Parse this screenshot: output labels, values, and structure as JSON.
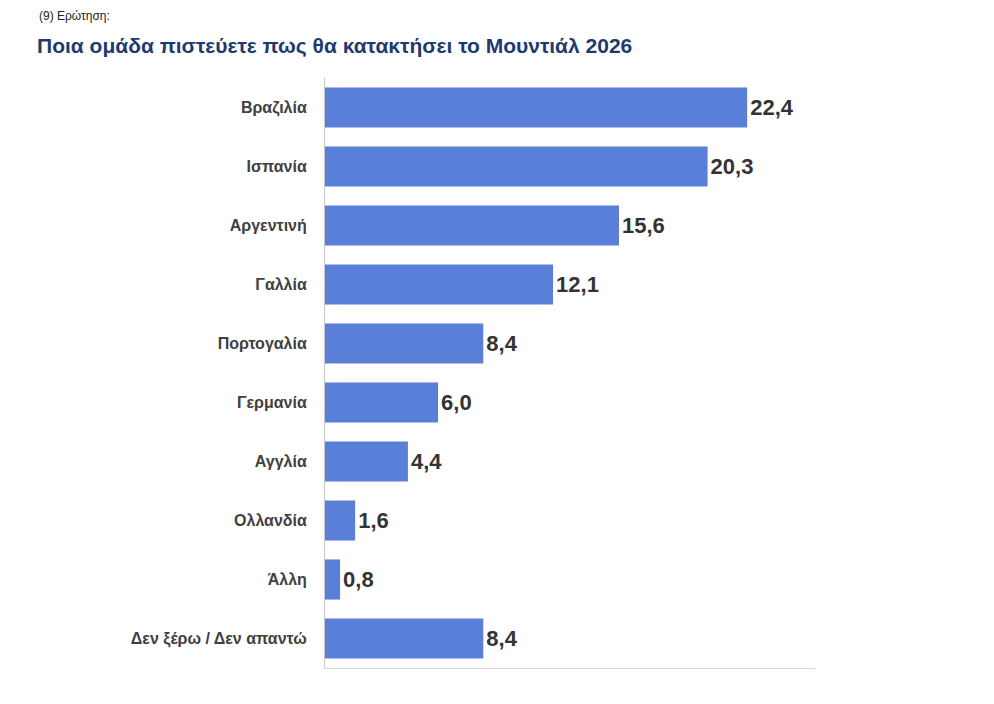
{
  "chart_data": {
    "type": "bar",
    "orientation": "horizontal",
    "subtitle": "(9) Ερώτηση:",
    "title": "Ποια ομάδα πιστεύετε πως θα κατακτήσει το Μουντιάλ 2026",
    "categories": [
      "Βραζιλία",
      "Ισπανία",
      "Αργεντινή",
      "Γαλλία",
      "Πορτογαλία",
      "Γερμανία",
      "Αγγλία",
      "Ολλανδία",
      "Άλλη",
      "Δεν ξέρω / Δεν απαντώ"
    ],
    "values": [
      22.4,
      20.3,
      15.6,
      12.1,
      8.4,
      6.0,
      4.4,
      1.6,
      0.8,
      8.4
    ],
    "value_labels": [
      "22,4",
      "20,3",
      "15,6",
      "12,1",
      "8,4",
      "6,0",
      "4,4",
      "1,6",
      "0,8",
      "8,4"
    ],
    "color": "#5a7fd8",
    "xlim": [
      0,
      26
    ],
    "data_labels": true,
    "tick_labels": "y",
    "grid": false
  }
}
